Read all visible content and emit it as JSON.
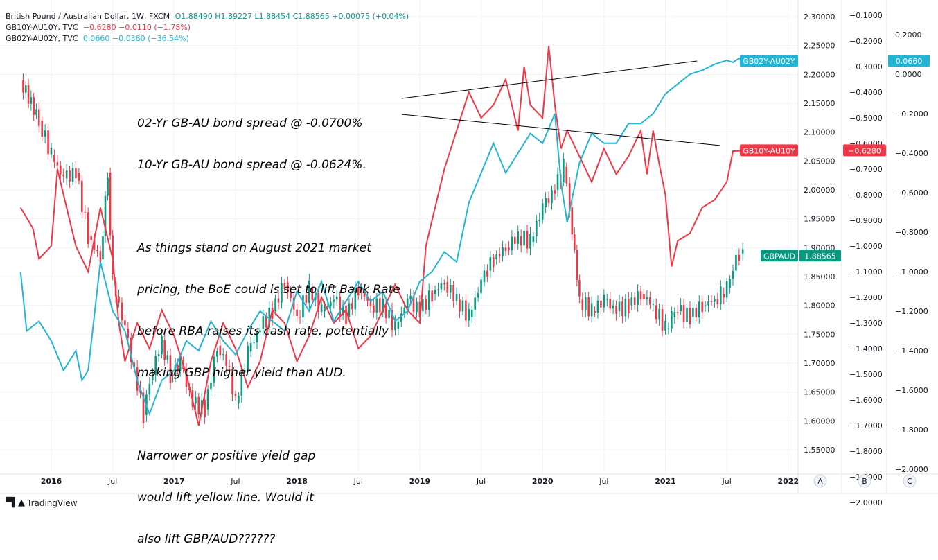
{
  "legend": {
    "main": {
      "name": "British Pound / Australian Dollar, 1W, FXCM",
      "ohlc": "O1.88490  H1.89227  L1.88454  C1.88565  +0.00075 (+0.04%)"
    },
    "gb10": {
      "name": "GB10Y-AU10Y, TVC",
      "values": "−0.6280  −0.0110 (−1.78%)"
    },
    "gb02": {
      "name": "GB02Y-AU02Y, TVC",
      "values": "0.0660  −0.0380 (−36.54%)"
    }
  },
  "annotation": {
    "line1": "02-Yr GB-AU bond spread @ -0.0700%",
    "line2": "10-Yr GB-AU bond spread @ -0.0624%.",
    "line3": "As things stand on August 2021 market",
    "line4": "pricing, the BoE could is set to lift Bank Rate",
    "line5": "before RBA raises its cash rate, potentially",
    "line6": "making GBP higher yield than AUD.",
    "line7": "Narrower or positive yield gap",
    "line8": "would lift yellow line. Would it",
    "line9": "also lift GBP/AUD??????"
  },
  "footer": {
    "brand": "TradingView"
  },
  "colors": {
    "up": "#089981",
    "down": "#f23645",
    "gb10": "#f23645",
    "gb02": "#22b5d3",
    "grid": "#f0f3fa",
    "axis": "#131722"
  },
  "chart_data": {
    "type": "line",
    "title": "British Pound / Australian Dollar, 1W, FXCM",
    "x_labels": [
      "2016",
      "Jul",
      "2017",
      "Jul",
      "2018",
      "Jul",
      "2019",
      "Jul",
      "2020",
      "Jul",
      "2021",
      "Jul",
      "2022"
    ],
    "x_range": [
      2015.75,
      2022.1
    ],
    "axes": {
      "price": {
        "ticks": [
          "2.30000",
          "2.25000",
          "2.20000",
          "2.15000",
          "2.10000",
          "2.05000",
          "2.00000",
          "1.95000",
          "1.90000",
          "1.85000",
          "1.80000",
          "1.75000",
          "1.70000",
          "1.65000",
          "1.60000",
          "1.55000"
        ],
        "range": [
          1.525,
          2.31
        ]
      },
      "A": {
        "ticks": [
          "−0.1000",
          "−0.2000",
          "−0.3000",
          "−0.4000",
          "−0.5000",
          "−0.6000",
          "−0.7000",
          "−0.8000",
          "−0.9000",
          "−1.0000",
          "−1.1000",
          "−1.2000",
          "−1.3000",
          "−1.4000",
          "−1.5000",
          "−1.6000",
          "−1.7000",
          "−1.8000",
          "−1.9000",
          "−2.0000"
        ],
        "range": [
          -2.02,
          -0.08
        ]
      },
      "B": {
        "ticks": [
          "0.2000",
          "0.0000",
          "−0.2000",
          "−0.4000",
          "−0.6000",
          "−0.8000",
          "−1.0000",
          "−1.2000",
          "−1.4000",
          "−1.6000",
          "−1.8000",
          "−2.0000"
        ],
        "range": [
          -2.05,
          0.26
        ]
      },
      "scale_labels": [
        "A",
        "B",
        "C"
      ]
    },
    "series": [
      {
        "name": "GBPAUD",
        "type": "candlestick",
        "last": "1.88565",
        "x": [
          2015.75,
          2015.9,
          2016.0,
          2016.1,
          2016.2,
          2016.3,
          2016.4,
          2016.46,
          2016.5,
          2016.6,
          2016.7,
          2016.75,
          2016.8,
          2016.9,
          2016.97,
          2017.05,
          2017.15,
          2017.25,
          2017.35,
          2017.45,
          2017.5,
          2017.6,
          2017.7,
          2017.8,
          2017.9,
          2018.0,
          2018.1,
          2018.2,
          2018.3,
          2018.4,
          2018.5,
          2018.6,
          2018.7,
          2018.8,
          2018.9,
          2019.0,
          2019.1,
          2019.2,
          2019.3,
          2019.4,
          2019.5,
          2019.55,
          2019.6,
          2019.7,
          2019.8,
          2019.9,
          2020.0,
          2020.1,
          2020.17,
          2020.22,
          2020.3,
          2020.4,
          2020.5,
          2020.6,
          2020.7,
          2020.8,
          2020.9,
          2021.0,
          2021.05,
          2021.1,
          2021.2,
          2021.3,
          2021.4,
          2021.45,
          2021.5,
          2021.55,
          2021.6,
          2021.63
        ],
        "values": [
          2.19,
          2.12,
          2.06,
          2.02,
          2.03,
          1.92,
          1.88,
          2.03,
          1.84,
          1.76,
          1.66,
          1.61,
          1.67,
          1.74,
          1.68,
          1.7,
          1.63,
          1.62,
          1.73,
          1.69,
          1.63,
          1.72,
          1.76,
          1.79,
          1.84,
          1.78,
          1.83,
          1.79,
          1.81,
          1.78,
          1.83,
          1.8,
          1.8,
          1.76,
          1.81,
          1.79,
          1.82,
          1.84,
          1.81,
          1.78,
          1.84,
          1.86,
          1.88,
          1.9,
          1.92,
          1.91,
          1.97,
          2.0,
          2.04,
          1.97,
          1.81,
          1.79,
          1.81,
          1.79,
          1.8,
          1.82,
          1.8,
          1.76,
          1.78,
          1.79,
          1.78,
          1.8,
          1.81,
          1.82,
          1.83,
          1.86,
          1.89,
          1.88565
        ]
      },
      {
        "name": "GB10Y-AU10Y",
        "axis": "A",
        "last": "−0.6280",
        "x": [
          2015.75,
          2015.85,
          2015.9,
          2016.0,
          2016.05,
          2016.1,
          2016.2,
          2016.3,
          2016.4,
          2016.5,
          2016.55,
          2016.6,
          2016.7,
          2016.8,
          2016.9,
          2017.0,
          2017.1,
          2017.2,
          2017.3,
          2017.4,
          2017.5,
          2017.6,
          2017.7,
          2017.8,
          2017.9,
          2018.0,
          2018.1,
          2018.2,
          2018.3,
          2018.4,
          2018.5,
          2018.6,
          2018.7,
          2018.8,
          2018.9,
          2019.0,
          2019.05,
          2019.1,
          2019.2,
          2019.3,
          2019.4,
          2019.5,
          2019.6,
          2019.7,
          2019.8,
          2019.85,
          2019.9,
          2020.0,
          2020.05,
          2020.1,
          2020.15,
          2020.2,
          2020.3,
          2020.4,
          2020.5,
          2020.6,
          2020.7,
          2020.8,
          2020.85,
          2020.9,
          2020.95,
          2021.0,
          2021.05,
          2021.1,
          2021.2,
          2021.3,
          2021.4,
          2021.5,
          2021.55,
          2021.63
        ],
        "values": [
          -0.85,
          -0.93,
          -1.05,
          -1.0,
          -0.7,
          -0.8,
          -1.0,
          -1.1,
          -0.85,
          -1.05,
          -1.3,
          -1.45,
          -1.3,
          -1.4,
          -1.25,
          -1.35,
          -1.5,
          -1.7,
          -1.45,
          -1.3,
          -1.4,
          -1.55,
          -1.45,
          -1.25,
          -1.3,
          -1.45,
          -1.35,
          -1.2,
          -1.3,
          -1.25,
          -1.4,
          -1.35,
          -1.25,
          -1.15,
          -1.25,
          -1.3,
          -1.0,
          -0.9,
          -0.7,
          -0.55,
          -0.4,
          -0.5,
          -0.45,
          -0.35,
          -0.55,
          -0.3,
          -0.45,
          -0.5,
          -0.22,
          -0.45,
          -0.62,
          -0.55,
          -0.65,
          -0.75,
          -0.62,
          -0.72,
          -0.65,
          -0.55,
          -0.72,
          -0.55,
          -0.68,
          -0.8,
          -1.08,
          -0.98,
          -0.95,
          -0.85,
          -0.82,
          -0.75,
          -0.63,
          -0.628
        ]
      },
      {
        "name": "GB02Y-AU02Y",
        "axis": "B",
        "last": "0.0660",
        "x": [
          2015.75,
          2015.8,
          2015.9,
          2016.0,
          2016.1,
          2016.2,
          2016.25,
          2016.3,
          2016.4,
          2016.5,
          2016.6,
          2016.7,
          2016.8,
          2016.9,
          2017.0,
          2017.1,
          2017.2,
          2017.3,
          2017.4,
          2017.5,
          2017.6,
          2017.7,
          2017.8,
          2017.9,
          2018.0,
          2018.1,
          2018.2,
          2018.3,
          2018.4,
          2018.5,
          2018.6,
          2018.7,
          2018.8,
          2018.9,
          2019.0,
          2019.1,
          2019.2,
          2019.3,
          2019.4,
          2019.5,
          2019.6,
          2019.7,
          2019.8,
          2019.9,
          2020.0,
          2020.1,
          2020.15,
          2020.2,
          2020.25,
          2020.3,
          2020.4,
          2020.5,
          2020.6,
          2020.7,
          2020.8,
          2020.9,
          2021.0,
          2021.1,
          2021.2,
          2021.3,
          2021.4,
          2021.5,
          2021.55,
          2021.6,
          2021.63
        ],
        "values": [
          -1.0,
          -1.3,
          -1.25,
          -1.35,
          -1.5,
          -1.4,
          -1.55,
          -1.5,
          -0.95,
          -1.2,
          -1.3,
          -1.55,
          -1.72,
          -1.55,
          -1.5,
          -1.35,
          -1.4,
          -1.25,
          -1.35,
          -1.42,
          -1.3,
          -1.2,
          -1.25,
          -1.3,
          -1.1,
          -1.2,
          -1.05,
          -1.25,
          -1.15,
          -1.05,
          -1.15,
          -1.1,
          -1.25,
          -1.2,
          -1.05,
          -1.0,
          -0.9,
          -0.95,
          -0.65,
          -0.5,
          -0.35,
          -0.5,
          -0.4,
          -0.3,
          -0.35,
          -0.2,
          -0.55,
          -0.75,
          -0.6,
          -0.45,
          -0.3,
          -0.35,
          -0.35,
          -0.25,
          -0.25,
          -0.2,
          -0.1,
          -0.05,
          0.0,
          0.02,
          0.05,
          0.07,
          0.06,
          0.08,
          0.066
        ]
      }
    ]
  }
}
